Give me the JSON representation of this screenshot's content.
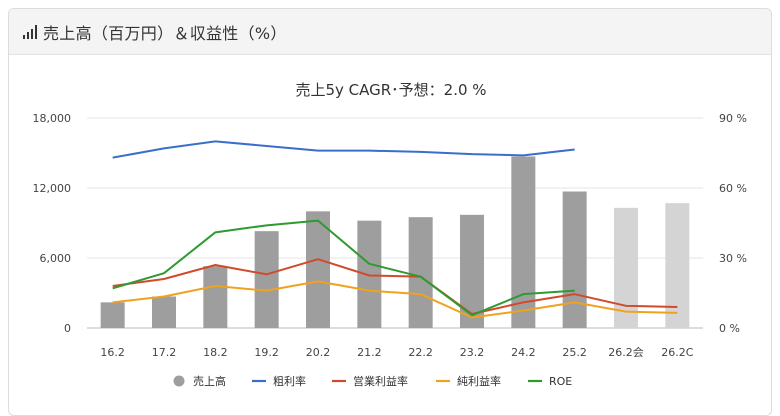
{
  "header": {
    "title": "売上高（百万円）＆収益性（%）",
    "icon": "bar-signal-icon"
  },
  "chart_data": {
    "type": "bar",
    "title": "売上5y CAGR･予想：2.0 %",
    "categories": [
      "16.2",
      "17.2",
      "18.2",
      "19.2",
      "20.2",
      "21.2",
      "22.2",
      "23.2",
      "24.2",
      "25.2",
      "26.2会",
      "26.2C"
    ],
    "y_left": {
      "ticks": [
        "0",
        "6,000",
        "12,000",
        "18,000"
      ],
      "min": 0,
      "max": 18000
    },
    "y_right": {
      "ticks": [
        "0 %",
        "30 %",
        "60 %",
        "90 %"
      ],
      "min": 0,
      "max": 90
    },
    "grid": true,
    "legend_position": "bottom",
    "series": [
      {
        "name": "売上高",
        "kind": "bar",
        "axis": "left",
        "color": "#9e9e9e",
        "forecast_color": "#d4d4d4",
        "forecast_from_index": 10,
        "values": [
          2200,
          2700,
          5300,
          8300,
          10000,
          9200,
          9500,
          9700,
          14700,
          11700,
          10300,
          10700
        ]
      },
      {
        "name": "粗利率",
        "kind": "line",
        "axis": "right",
        "color": "#3a6fc9",
        "values": [
          73,
          77,
          80,
          78,
          76,
          76,
          75.5,
          74.5,
          74,
          76.5,
          null,
          null
        ]
      },
      {
        "name": "営業利益率",
        "kind": "line",
        "axis": "right",
        "color": "#d24a2c",
        "values": [
          18,
          21,
          27,
          23,
          29.5,
          22.5,
          22,
          6,
          11,
          14.5,
          9.5,
          9
        ]
      },
      {
        "name": "純利益率",
        "kind": "line",
        "axis": "right",
        "color": "#f0a21e",
        "values": [
          11,
          13.5,
          18,
          16,
          20,
          16,
          14.5,
          4.5,
          7.5,
          11,
          7,
          6.5
        ]
      },
      {
        "name": "ROE",
        "kind": "line",
        "axis": "right",
        "color": "#2e9a30",
        "values": [
          17,
          23.5,
          41,
          44,
          46,
          27.5,
          22,
          5.5,
          14.5,
          16,
          null,
          null
        ]
      }
    ]
  }
}
